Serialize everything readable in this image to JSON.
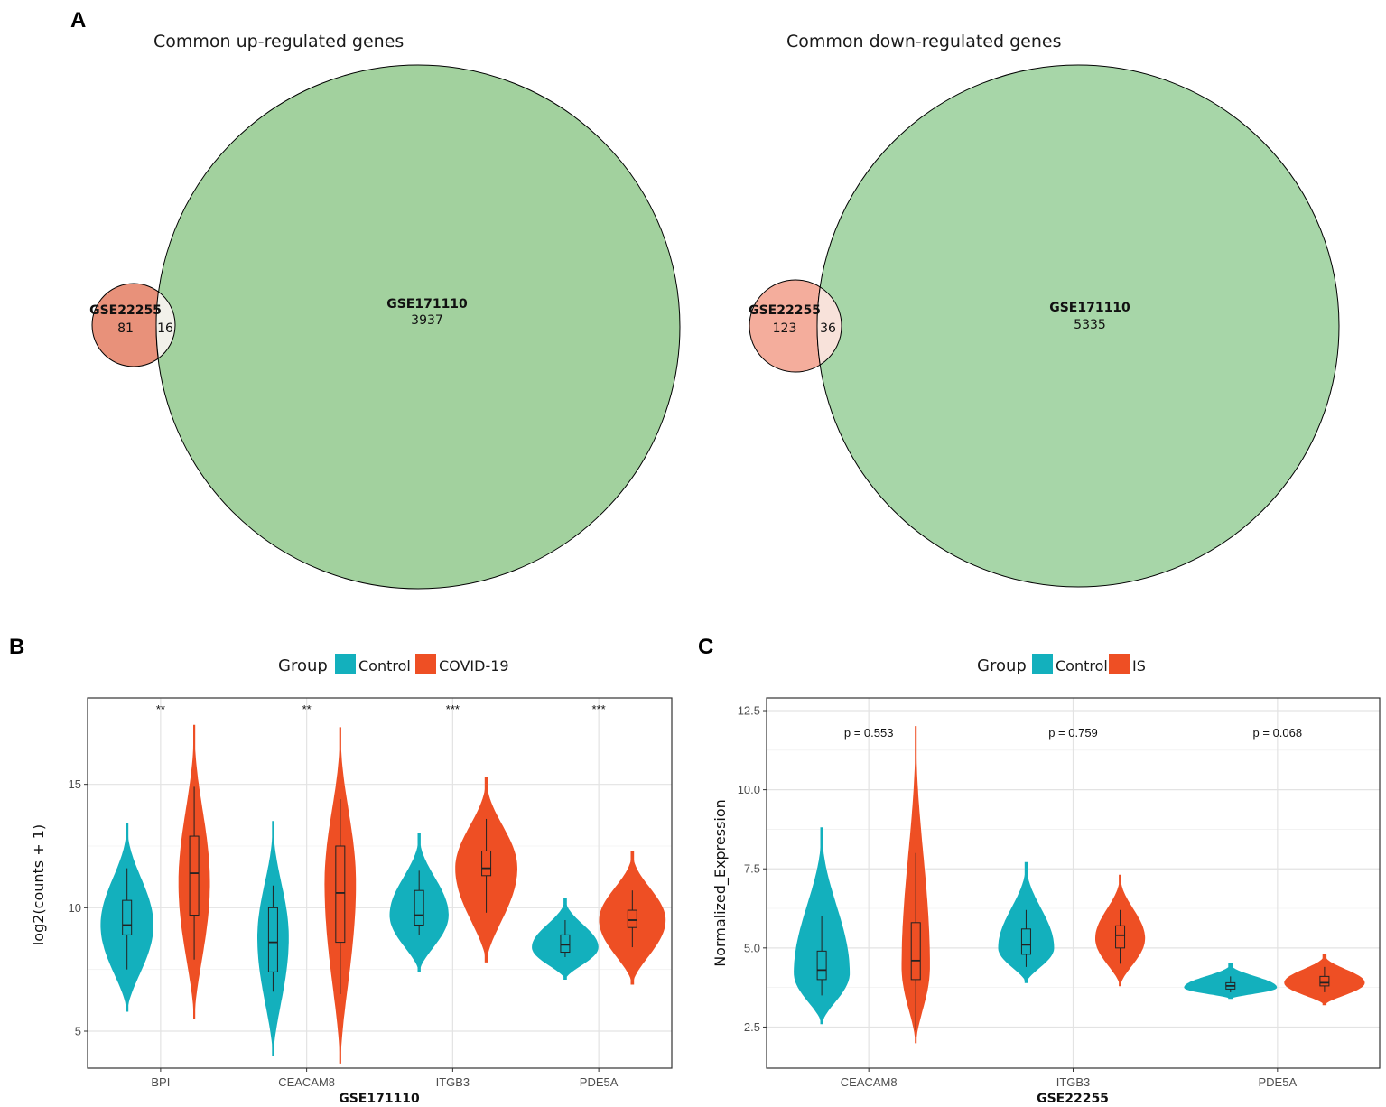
{
  "panels": {
    "a": "A",
    "b": "B",
    "c": "C"
  },
  "venn": [
    {
      "title": "Common up-regulated genes",
      "small_set": {
        "name": "GSE22255",
        "only": "81",
        "color": "#e8917a"
      },
      "large_set": {
        "name": "GSE171110",
        "only": "3937",
        "color": "#a2d19e"
      },
      "overlap": {
        "count": "16",
        "color": "#f2f1ea"
      }
    },
    {
      "title": "Common down-regulated genes",
      "small_set": {
        "name": "GSE22255",
        "only": "123",
        "color": "#f4ad9c"
      },
      "large_set": {
        "name": "GSE171110",
        "only": "5335",
        "color": "#a7d6a8"
      },
      "overlap": {
        "count": "36",
        "color": "#f8e2da"
      }
    }
  ],
  "chart_data": [
    {
      "type": "violin",
      "xlabel": "GSE171110",
      "ylabel": "log2(counts + 1)",
      "ylim": [
        3.5,
        18.5
      ],
      "yticks": [
        5,
        10,
        15
      ],
      "legend": {
        "title": "Group",
        "entries": [
          "Control",
          "COVID-19"
        ],
        "colors": [
          "#13b0bd",
          "#ee4f24"
        ]
      },
      "categories": [
        "BPI",
        "CEACAM8",
        "ITGB3",
        "PDE5A"
      ],
      "annotations": [
        "**",
        "**",
        "***",
        "***"
      ],
      "series": [
        {
          "name": "Control",
          "violins": [
            {
              "min": 5.8,
              "max": 13.4,
              "mode": 9.3,
              "w": 0.85,
              "q1": 8.9,
              "median": 9.3,
              "q3": 10.3,
              "wlo": 7.5,
              "whi": 11.6
            },
            {
              "min": 4.0,
              "max": 13.5,
              "mode": 8.8,
              "w": 0.5,
              "q1": 7.4,
              "median": 8.6,
              "q3": 10.0,
              "wlo": 6.6,
              "whi": 10.9
            },
            {
              "min": 7.4,
              "max": 13.0,
              "mode": 9.7,
              "w": 0.95,
              "q1": 9.3,
              "median": 9.7,
              "q3": 10.7,
              "wlo": 8.9,
              "whi": 11.5
            },
            {
              "min": 7.1,
              "max": 10.4,
              "mode": 8.4,
              "w": 1.55,
              "q1": 8.2,
              "median": 8.5,
              "q3": 8.9,
              "wlo": 8.0,
              "whi": 9.5
            }
          ]
        },
        {
          "name": "COVID-19",
          "violins": [
            {
              "min": 5.5,
              "max": 17.4,
              "mode": 11.0,
              "w": 0.5,
              "q1": 9.7,
              "median": 11.4,
              "q3": 12.9,
              "wlo": 7.9,
              "whi": 14.9
            },
            {
              "min": 3.7,
              "max": 17.3,
              "mode": 11.0,
              "w": 0.5,
              "q1": 8.6,
              "median": 10.6,
              "q3": 12.5,
              "wlo": 6.5,
              "whi": 14.4
            },
            {
              "min": 7.8,
              "max": 15.3,
              "mode": 11.6,
              "w": 1.0,
              "q1": 11.3,
              "median": 11.6,
              "q3": 12.3,
              "wlo": 9.8,
              "whi": 13.6
            },
            {
              "min": 6.9,
              "max": 12.3,
              "mode": 9.5,
              "w": 1.5,
              "q1": 9.2,
              "median": 9.5,
              "q3": 9.9,
              "wlo": 8.4,
              "whi": 10.7
            }
          ]
        }
      ]
    },
    {
      "type": "violin",
      "xlabel": "GSE22255",
      "ylabel": "Normalized_Expression",
      "ylim": [
        1.2,
        12.9
      ],
      "yticks": [
        2.5,
        5.0,
        7.5,
        10.0,
        12.5
      ],
      "legend": {
        "title": "Group",
        "entries": [
          "Control",
          "IS"
        ],
        "colors": [
          "#13b0bd",
          "#ee4f24"
        ]
      },
      "categories": [
        "CEACAM8",
        "ITGB3",
        "PDE5A"
      ],
      "annotations": [
        "p = 0.553",
        "p = 0.759",
        "p = 0.068"
      ],
      "series": [
        {
          "name": "Control",
          "violins": [
            {
              "min": 2.6,
              "max": 8.8,
              "mode": 4.2,
              "w": 0.9,
              "q1": 4.0,
              "median": 4.3,
              "q3": 4.9,
              "wlo": 3.5,
              "whi": 6.0
            },
            {
              "min": 3.9,
              "max": 7.7,
              "mode": 5.0,
              "w": 0.9,
              "q1": 4.8,
              "median": 5.1,
              "q3": 5.6,
              "wlo": 4.4,
              "whi": 6.2
            },
            {
              "min": 3.4,
              "max": 4.5,
              "mode": 3.75,
              "w": 1.55,
              "q1": 3.7,
              "median": 3.8,
              "q3": 3.9,
              "wlo": 3.6,
              "whi": 4.1
            }
          ]
        },
        {
          "name": "IS",
          "violins": [
            {
              "min": 2.0,
              "max": 12.0,
              "mode": 4.4,
              "w": 0.45,
              "q1": 4.0,
              "median": 4.6,
              "q3": 5.8,
              "wlo": 2.4,
              "whi": 8.0
            },
            {
              "min": 3.8,
              "max": 7.3,
              "mode": 5.3,
              "w": 0.8,
              "q1": 5.0,
              "median": 5.4,
              "q3": 5.7,
              "wlo": 4.5,
              "whi": 6.2
            },
            {
              "min": 3.2,
              "max": 4.8,
              "mode": 3.9,
              "w": 1.3,
              "q1": 3.8,
              "median": 3.9,
              "q3": 4.1,
              "wlo": 3.6,
              "whi": 4.4
            }
          ]
        }
      ]
    }
  ]
}
